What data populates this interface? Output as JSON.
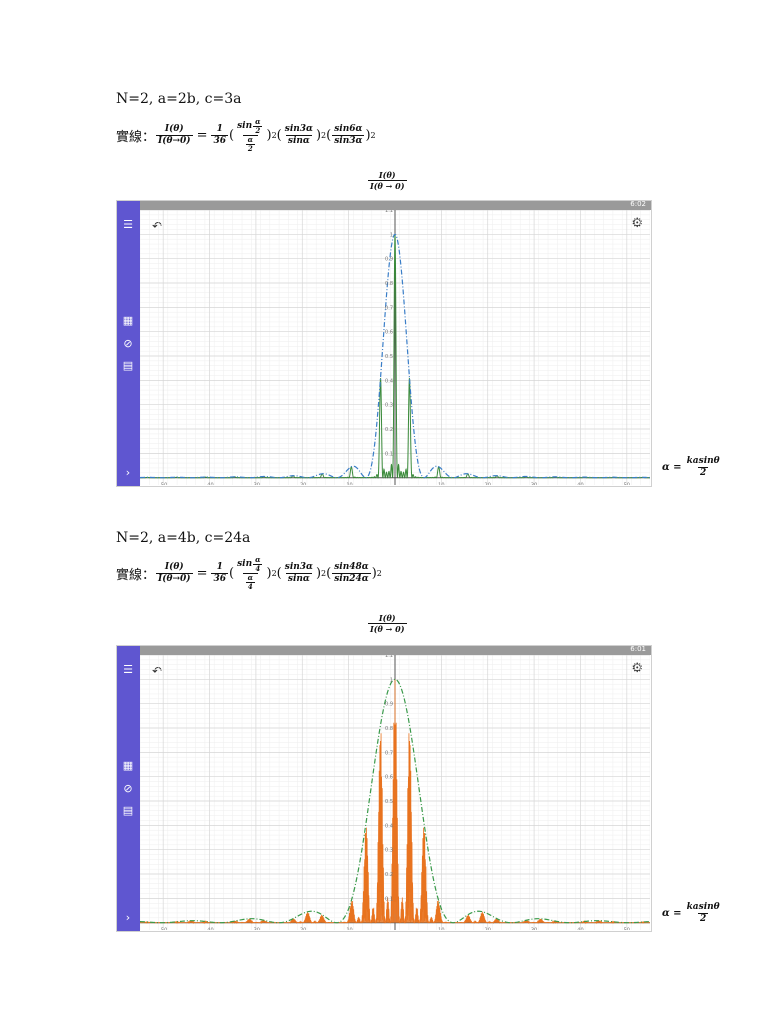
{
  "section1": {
    "heading": "N=2,  a=2b,  c=3a",
    "formula_prefix": "實線：",
    "lhs_num": "I(θ)",
    "lhs_den": "I(θ→0)",
    "eq": "=",
    "coef_num": "1",
    "coef_den": "36",
    "t1_num": "sin",
    "t1_num_frac_num": "α",
    "t1_num_frac_den": "2",
    "t1_den_num": "α",
    "t1_den_den": "2",
    "t2_num": "sin3α",
    "t2_den": "sinα",
    "t3_num": "sin6α",
    "t3_den": "sin3α",
    "sq": "2",
    "ylabel_num": "I(θ)",
    "ylabel_den": "I(θ → 0)",
    "xlabel_lhs": "α =",
    "xlabel_num": "kasinθ",
    "xlabel_den": "2",
    "time": "6:02"
  },
  "section2": {
    "heading": "N=2,  a=4b,  c=24a",
    "formula_prefix": "實線：",
    "lhs_num": "I(θ)",
    "lhs_den": "I(θ→0)",
    "eq": "=",
    "coef_num": "1",
    "coef_den": "36",
    "t1_num": "sin",
    "t1_num_frac_num": "α",
    "t1_num_frac_den": "4",
    "t1_den_num": "α",
    "t1_den_den": "4",
    "t2_num": "sin3α",
    "t2_den": "sinα",
    "t3_num": "sin48α",
    "t3_den": "sin24α",
    "sq": "2",
    "ylabel_num": "I(θ)",
    "ylabel_den": "I(θ → 0)",
    "xlabel_lhs": "α =",
    "xlabel_num": "kasinθ",
    "xlabel_den": "2",
    "time": "6:01"
  },
  "icons": {
    "menu": "menu-icon",
    "calculator": "calculator-icon",
    "shapes": "shapes-icon",
    "table": "table-icon",
    "expand": "chevron-right-icon",
    "undo": "undo-icon",
    "settings": "gear-icon"
  },
  "colors": {
    "sidebar": "#5f56d0",
    "curve1": "#3a8a3a",
    "envelope1": "#3a7ec8",
    "curve2": "#e8731f",
    "envelope2": "#3a9a4a"
  },
  "chart_data": [
    {
      "type": "line",
      "title": "",
      "xlabel": "α = kasinθ / 2",
      "ylabel": "I(θ) / I(θ → 0)",
      "xlim": [
        -55,
        55
      ],
      "ylim": [
        -0.03,
        1.1
      ],
      "x_ticks": [
        -50,
        -40,
        -30,
        -20,
        -10,
        0,
        10,
        20,
        30,
        40,
        50
      ],
      "x_tick_labels": [
        "-50",
        "-40",
        "-30",
        "-20",
        "-10",
        "0",
        "10",
        "20",
        "30",
        "40",
        "50"
      ],
      "y_ticks": [
        0.1,
        0.2,
        0.3,
        0.4,
        0.5,
        0.6,
        0.7,
        0.8,
        0.9,
        1,
        1.1
      ],
      "y_tick_labels": [
        "0.1",
        "0.2",
        "0.3",
        "0.4",
        "0.5",
        "0.6",
        "0.7",
        "0.8",
        "0.9",
        "1",
        "1.1"
      ],
      "grid": true,
      "series": [
        {
          "style": "solid",
          "color": "#3a8a3a",
          "formula": "(1/36)(sin(α/2)/(α/2))^2 (sin3α/sinα)^2 (sin6α/sin3α)^2",
          "b": 2,
          "M": 6
        },
        {
          "style": "dash-dot",
          "color": "#3a7ec8",
          "formula": "(sin(α/2)/(α/2))^2",
          "b": 2
        }
      ]
    },
    {
      "type": "line",
      "title": "",
      "xlabel": "α = kasinθ / 2",
      "ylabel": "I(θ) / I(θ → 0)",
      "xlim": [
        -55,
        55
      ],
      "ylim": [
        -0.03,
        1.1
      ],
      "x_ticks": [
        -50,
        -40,
        -30,
        -20,
        -10,
        0,
        10,
        20,
        30,
        40,
        50
      ],
      "x_tick_labels": [
        "-50",
        "-40",
        "-30",
        "-20",
        "-10",
        "0",
        "10",
        "20",
        "30",
        "40",
        "50"
      ],
      "y_ticks": [
        0.1,
        0.2,
        0.3,
        0.4,
        0.5,
        0.6,
        0.7,
        0.8,
        0.9,
        1,
        1.1
      ],
      "y_tick_labels": [
        "0.1",
        "0.2",
        "0.3",
        "0.4",
        "0.5",
        "0.6",
        "0.7",
        "0.8",
        "0.9",
        "1",
        "1.1"
      ],
      "grid": true,
      "series": [
        {
          "style": "filled",
          "color": "#e8731f",
          "formula": "(1/36)(sin(α/4)/(α/4))^2 (sin3α/sinα)^2 (sin48α/sin24α)^2",
          "b": 4,
          "M": 48
        },
        {
          "style": "dash-dot",
          "color": "#3a9a4a",
          "formula": "(sin(α/4)/(α/4))^2",
          "b": 4
        }
      ]
    }
  ]
}
